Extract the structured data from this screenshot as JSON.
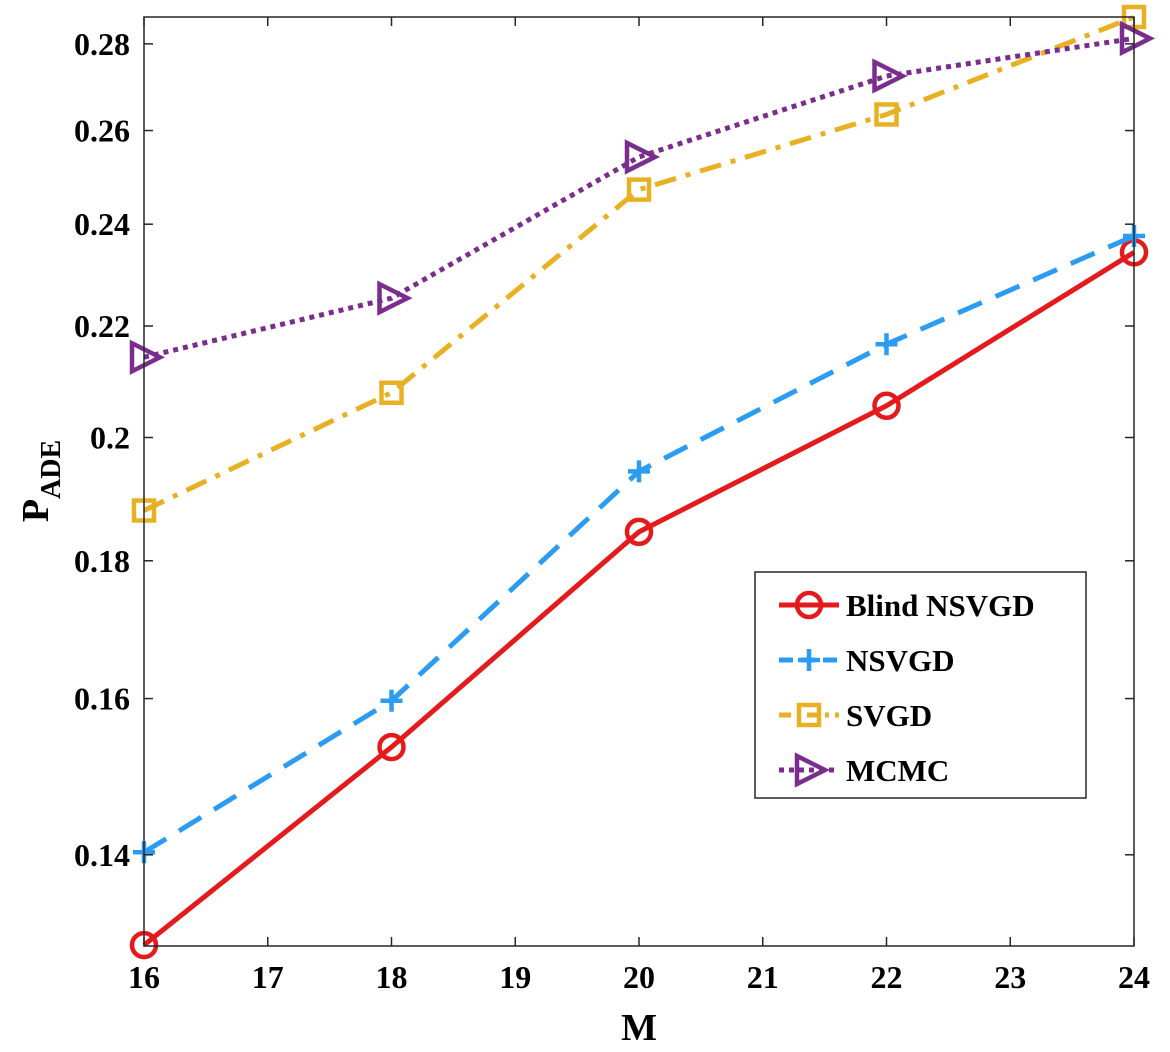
{
  "chart_data": {
    "type": "line",
    "xlabel": "M",
    "ylabel_main": "P",
    "ylabel_sub": "ADE",
    "y_scale": "log",
    "xlim": [
      16,
      24
    ],
    "ylim": [
      0.1295,
      0.2865
    ],
    "xticks": [
      16,
      17,
      18,
      19,
      20,
      21,
      22,
      23,
      24
    ],
    "yticks": [
      {
        "value": 0.14,
        "label": "0.14"
      },
      {
        "value": 0.16,
        "label": "0.16"
      },
      {
        "value": 0.18,
        "label": "0.18"
      },
      {
        "value": 0.2,
        "label": "0.2"
      },
      {
        "value": 0.22,
        "label": "0.22"
      },
      {
        "value": 0.24,
        "label": "0.24"
      },
      {
        "value": 0.26,
        "label": "0.26"
      },
      {
        "value": 0.28,
        "label": "0.28"
      }
    ],
    "x": [
      16,
      18,
      20,
      22,
      24
    ],
    "legend_position": "center-right",
    "series": [
      {
        "name": "Blind NSVGD",
        "color": "#e41a1c",
        "marker": "circle",
        "dash": "solid",
        "values": [
          0.1296,
          0.1535,
          0.1845,
          0.2055,
          0.2343
        ]
      },
      {
        "name": "NSVGD",
        "color": "#2b9cf2",
        "marker": "plus",
        "dash": "dashed",
        "values": [
          0.1403,
          0.1597,
          0.1943,
          0.2166,
          0.2376
        ]
      },
      {
        "name": "SVGD",
        "color": "#e8b124",
        "marker": "square",
        "dash": "dashdot",
        "values": [
          0.1879,
          0.2078,
          0.2472,
          0.2636,
          0.2865
        ]
      },
      {
        "name": "MCMC",
        "color": "#7b2d8e",
        "marker": "triangle-right",
        "dash": "dotted",
        "values": [
          0.2142,
          0.2253,
          0.2542,
          0.2724,
          0.2813
        ]
      }
    ]
  }
}
